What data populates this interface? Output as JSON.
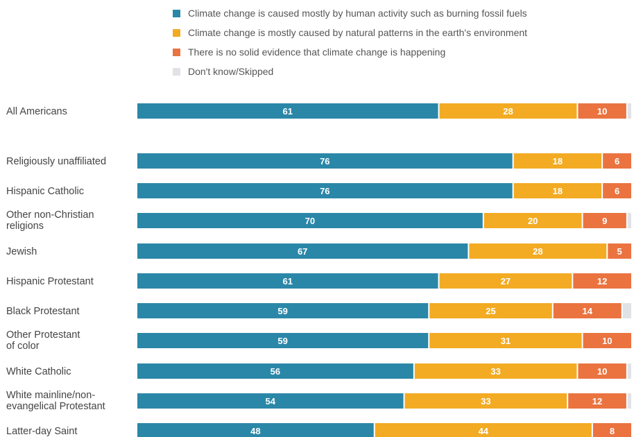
{
  "chart_data": {
    "type": "bar",
    "orientation": "horizontal",
    "stacked": true,
    "title": "",
    "xlabel": "",
    "ylabel": "",
    "xlim": [
      0,
      100
    ],
    "grid": false,
    "legend_position": "top",
    "categories": [
      [
        "All Americans"
      ],
      [
        "Religiously unaffiliated"
      ],
      [
        "Hispanic Catholic"
      ],
      [
        "Other non-Christian",
        "religions"
      ],
      [
        "Jewish"
      ],
      [
        "Hispanic Protestant"
      ],
      [
        "Black Protestant"
      ],
      [
        "Other Protestant",
        "of color"
      ],
      [
        "White Catholic"
      ],
      [
        "White mainline/non-",
        "evangelical Protestant"
      ],
      [
        "Latter-day Saint"
      ]
    ],
    "series": [
      {
        "name": "Climate change is caused mostly by human activity such as burning fossil fuels",
        "color": "#2b87a8",
        "values": [
          61,
          76,
          76,
          70,
          67,
          61,
          59,
          59,
          56,
          54,
          48
        ]
      },
      {
        "name": "Climate change is mostly caused by natural patterns in the earth's environment",
        "color": "#f3ab23",
        "values": [
          28,
          18,
          18,
          20,
          28,
          27,
          25,
          31,
          33,
          33,
          44
        ]
      },
      {
        "name": "There is no solid evidence that climate change is happening",
        "color": "#ea7340",
        "values": [
          10,
          6,
          6,
          9,
          5,
          12,
          14,
          10,
          10,
          12,
          8
        ]
      },
      {
        "name": "Don't know/Skipped",
        "color": "#e0e2e6",
        "values": [
          1,
          0,
          0,
          1,
          0,
          0,
          2,
          0,
          1,
          1,
          0
        ]
      }
    ]
  }
}
